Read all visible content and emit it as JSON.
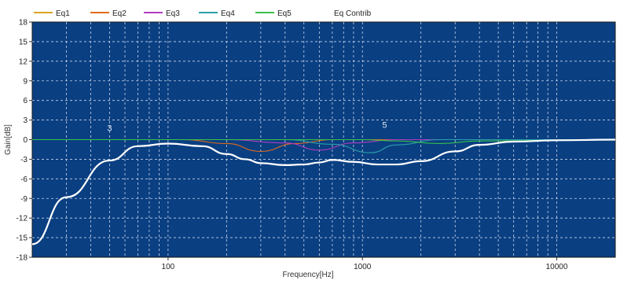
{
  "chart_data": {
    "type": "line",
    "xlabel": "Frequency[Hz]",
    "ylabel": "Gain[dB]",
    "x_scale": "log",
    "xlim": [
      20,
      20000
    ],
    "ylim": [
      -18,
      18
    ],
    "y_ticks": [
      18,
      15,
      12,
      9,
      6,
      3,
      0,
      -3,
      -6,
      -9,
      -12,
      -15,
      -18
    ],
    "y_tick_labels": [
      "18",
      "15",
      "12",
      "9",
      "6",
      "3",
      "0",
      "-3",
      "-6",
      "-9",
      "-12",
      "-15",
      "-18"
    ],
    "x_ticks": [
      100,
      1000,
      10000
    ],
    "x_tick_labels": [
      "100",
      "1000",
      "10000"
    ],
    "grid": true,
    "colors": {
      "plot_bg": "#0a3f82",
      "grid": "#c8d4e6",
      "frame": "#1a1a1a"
    },
    "legend_position": "top",
    "series": [
      {
        "name": "Eq1",
        "color": "#d9a520",
        "x": [
          20,
          50,
          100,
          200,
          300,
          1000,
          20000
        ],
        "y": [
          0,
          0,
          0,
          0,
          0,
          0,
          0
        ]
      },
      {
        "name": "Eq2",
        "color": "#e06c1c",
        "x": [
          20,
          120,
          200,
          300,
          450,
          700,
          20000
        ],
        "y": [
          0,
          0,
          -0.6,
          -1.8,
          -0.6,
          0,
          0
        ]
      },
      {
        "name": "Eq3",
        "color": "#b13cc0",
        "x": [
          20,
          200,
          400,
          600,
          900,
          1500,
          20000
        ],
        "y": [
          0,
          0,
          -0.5,
          -1.6,
          -0.5,
          0,
          0
        ]
      },
      {
        "name": "Eq4",
        "color": "#2aa0a8",
        "x": [
          20,
          400,
          700,
          1100,
          1500,
          2500,
          20000
        ],
        "y": [
          0,
          0,
          -0.7,
          -2.0,
          -0.8,
          0,
          0
        ]
      },
      {
        "name": "Eq5",
        "color": "#39c04a",
        "x": [
          20,
          1000,
          1500,
          2500,
          4000,
          20000
        ],
        "y": [
          0,
          0,
          -0.2,
          -0.6,
          -0.2,
          0
        ]
      },
      {
        "name": "Eq Contrib",
        "color": "#ffffff",
        "x": [
          20,
          30,
          50,
          70,
          100,
          150,
          200,
          250,
          300,
          400,
          500,
          600,
          700,
          900,
          1200,
          1500,
          2000,
          3000,
          4000,
          6000,
          10000,
          20000
        ],
        "y": [
          -16,
          -8.8,
          -3.2,
          -1.0,
          -0.6,
          -1.0,
          -2.2,
          -3.0,
          -3.6,
          -3.9,
          -3.8,
          -3.5,
          -3.1,
          -3.4,
          -3.8,
          -3.8,
          -3.3,
          -1.8,
          -0.8,
          -0.3,
          -0.1,
          0
        ]
      }
    ],
    "annotations": [
      {
        "text": "3",
        "x": 50,
        "y": 1.3
      },
      {
        "text": "5",
        "x": 1300,
        "y": 1.8
      }
    ]
  }
}
